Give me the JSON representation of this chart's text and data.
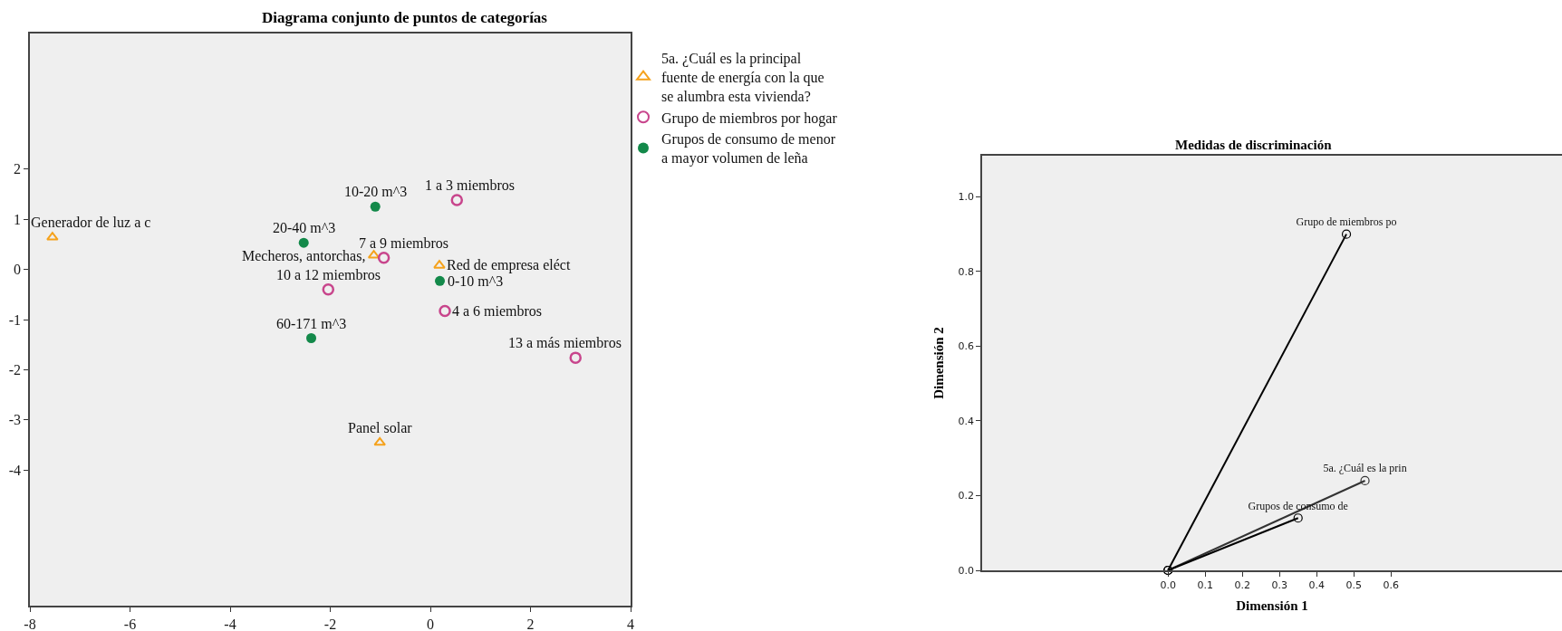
{
  "chart_data": [
    {
      "type": "scatter",
      "title": "Diagrama conjunto de puntos de categorías",
      "xlim": [
        -8,
        4
      ],
      "ylim": [
        -6.7,
        4.7
      ],
      "xticks": [
        -8,
        -6,
        -4,
        -2,
        0,
        2,
        4
      ],
      "yticks": [
        2,
        1,
        0,
        -1,
        -2,
        -3,
        -4
      ],
      "legend": "top right",
      "series": [
        {
          "name": "5a. ¿Cuál es la principal fuente de energía con la que se alumbra esta vivienda?",
          "color": "#f5a21c",
          "marker": "triangle",
          "x": [
            -7.55,
            -1.13,
            0.18,
            -1.01
          ],
          "values": [
            0.64,
            0.28,
            0.08,
            -3.45
          ]
        },
        {
          "name": "Grupo de miembros por hogar",
          "color": "#c8458c",
          "marker": "circle-open",
          "x": [
            0.53,
            0.29,
            -0.93,
            -2.04,
            2.9
          ],
          "values": [
            1.38,
            -0.83,
            0.23,
            -0.4,
            -1.76
          ]
        },
        {
          "name": "Grupos de consumo de menor a mayor volumen de leña",
          "color": "#13894a",
          "marker": "circle",
          "x": [
            0.19,
            -1.1,
            -2.53,
            -2.38
          ],
          "values": [
            -0.23,
            1.25,
            0.53,
            -1.37
          ]
        }
      ],
      "annotations": [
        {
          "text": "Generador de luz a c",
          "x": -7.55,
          "y": 0.64
        },
        {
          "text": "10-20 m^3",
          "x": -1.1,
          "y": 1.25
        },
        {
          "text": "1 a 3 miembros",
          "x": 0.53,
          "y": 1.38
        },
        {
          "text": "20-40 m^3",
          "x": -2.53,
          "y": 0.53
        },
        {
          "text": "Mecheros, antorchas,",
          "x": -1.13,
          "y": 0.28
        },
        {
          "text": "7 a 9 miembros",
          "x": -0.93,
          "y": 0.23
        },
        {
          "text": "Red de empresa eléct",
          "x": 0.18,
          "y": 0.08
        },
        {
          "text": "0-10 m^3",
          "x": 0.19,
          "y": -0.23
        },
        {
          "text": "10 a 12 miembros",
          "x": -2.04,
          "y": -0.4
        },
        {
          "text": "4 a 6 miembros",
          "x": 0.29,
          "y": -0.83
        },
        {
          "text": "60-171 m^3",
          "x": -2.38,
          "y": -1.37
        },
        {
          "text": "13 a más miembros",
          "x": 2.9,
          "y": -1.76
        },
        {
          "text": "Panel solar",
          "x": -1.01,
          "y": -3.45
        }
      ]
    },
    {
      "type": "line",
      "title": "Medidas de discriminación",
      "xlabel": "Dimensión 1",
      "ylabel": "Dimensión 2",
      "xlim": [
        -0.5,
        1.06
      ],
      "ylim": [
        0,
        1.11
      ],
      "xticks": [
        {
          "value": 0,
          "label": "0.0"
        },
        0.1,
        0.2,
        0.3,
        0.4,
        0.5,
        0.6
      ],
      "yticks": [
        {
          "value": 0,
          "label": "0.0"
        },
        0.2,
        0.4,
        0.6,
        0.8,
        {
          "value": 1,
          "label": "1.0"
        }
      ],
      "marker": "circle-open",
      "series": [
        {
          "name": "5a. ¿Cuál es la prin",
          "color": "#333333",
          "x": [
            0,
            0.53
          ],
          "values": [
            0,
            0.24
          ]
        },
        {
          "name": "Grupo de miembros po",
          "color": "#000000",
          "x": [
            0,
            0.48
          ],
          "values": [
            0,
            0.9
          ]
        },
        {
          "name": "Grupos de consumo de",
          "color": "#000000",
          "x": [
            0,
            0.35
          ],
          "values": [
            0,
            0.14
          ]
        }
      ]
    }
  ]
}
